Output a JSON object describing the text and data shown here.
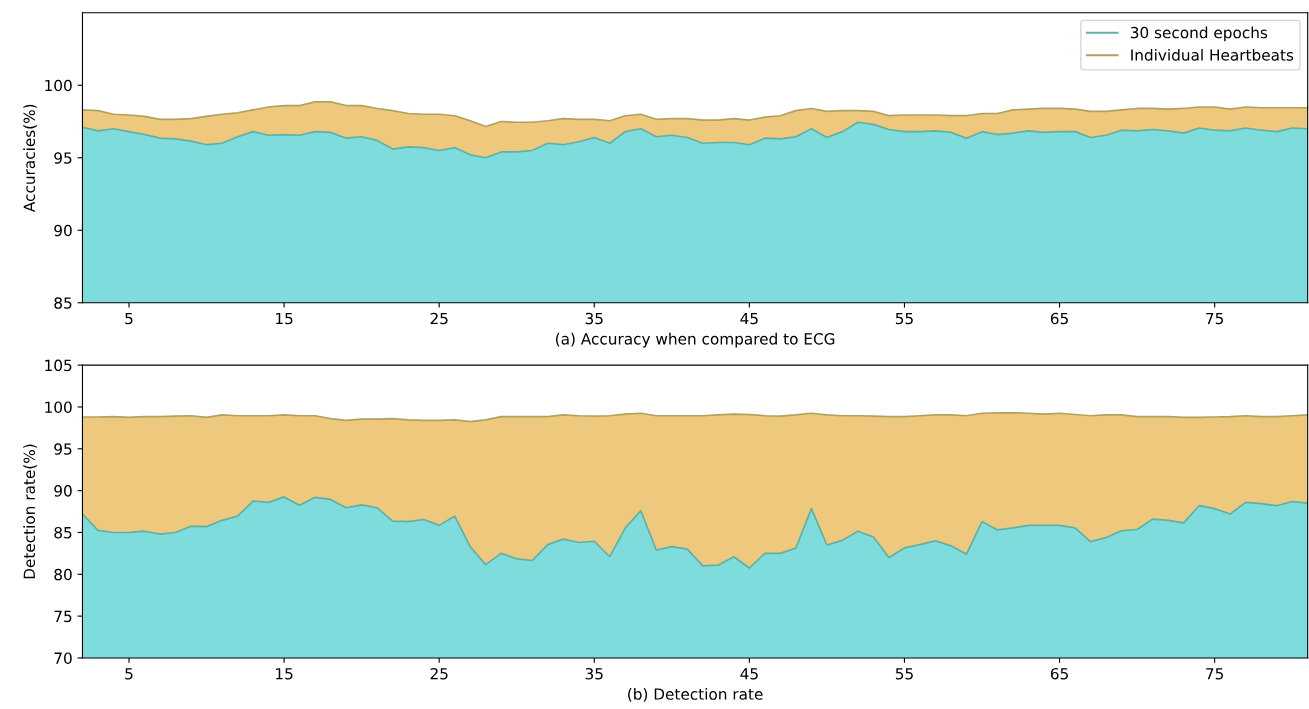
{
  "chart_data": [
    {
      "type": "area",
      "xlabel": "(a) Accuracy when compared to ECG",
      "ylabel": "Accuracies(%)",
      "x": [
        2,
        3,
        4,
        5,
        6,
        7,
        8,
        9,
        10,
        11,
        12,
        13,
        14,
        15,
        16,
        17,
        18,
        19,
        20,
        21,
        22,
        23,
        24,
        25,
        26,
        27,
        28,
        29,
        30,
        31,
        32,
        33,
        34,
        35,
        36,
        37,
        38,
        39,
        40,
        41,
        42,
        43,
        44,
        45,
        46,
        47,
        48,
        49,
        50,
        51,
        52,
        53,
        54,
        55,
        56,
        57,
        58,
        59,
        60,
        61,
        62,
        63,
        64,
        65,
        66,
        67,
        68,
        69,
        70,
        71,
        72,
        73,
        74,
        75,
        76,
        77,
        78,
        79,
        80,
        81
      ],
      "xlim": [
        2,
        81
      ],
      "xticks": [
        5,
        15,
        25,
        35,
        45,
        55,
        65,
        75
      ],
      "ylim": [
        85,
        105
      ],
      "yticks": [
        85,
        90,
        95,
        100
      ],
      "legend": "top right",
      "grid": false,
      "series": [
        {
          "name": "Individual Heartbeats",
          "color": "#eec97d",
          "values": [
            98.3,
            98.25,
            98.0,
            97.95,
            97.85,
            97.65,
            97.65,
            97.7,
            97.85,
            98.0,
            98.1,
            98.3,
            98.5,
            98.6,
            98.6,
            98.85,
            98.85,
            98.6,
            98.6,
            98.4,
            98.25,
            98.05,
            98.0,
            98.0,
            97.9,
            97.55,
            97.15,
            97.5,
            97.45,
            97.45,
            97.55,
            97.7,
            97.65,
            97.65,
            97.55,
            97.9,
            98.0,
            97.65,
            97.7,
            97.7,
            97.6,
            97.6,
            97.7,
            97.6,
            97.8,
            97.9,
            98.25,
            98.4,
            98.2,
            98.25,
            98.25,
            98.2,
            97.9,
            97.95,
            97.95,
            97.95,
            97.9,
            97.9,
            98.05,
            98.05,
            98.3,
            98.35,
            98.4,
            98.4,
            98.35,
            98.2,
            98.2,
            98.3,
            98.4,
            98.4,
            98.35,
            98.4,
            98.5,
            98.5,
            98.35,
            98.5,
            98.45,
            98.45,
            98.45,
            98.45
          ]
        },
        {
          "name": "30 second epochs",
          "color": "#7fdcdc",
          "values": [
            97.1,
            96.85,
            97.0,
            96.8,
            96.6,
            96.35,
            96.3,
            96.15,
            95.9,
            96.0,
            96.45,
            96.8,
            96.55,
            96.6,
            96.55,
            96.8,
            96.75,
            96.35,
            96.45,
            96.2,
            95.6,
            95.75,
            95.7,
            95.5,
            95.7,
            95.2,
            95.0,
            95.4,
            95.4,
            95.5,
            96.0,
            95.9,
            96.1,
            96.4,
            96.0,
            96.8,
            97.0,
            96.45,
            96.55,
            96.4,
            96.0,
            96.05,
            96.05,
            95.9,
            96.35,
            96.3,
            96.45,
            97.0,
            96.4,
            96.8,
            97.45,
            97.3,
            96.95,
            96.8,
            96.8,
            96.85,
            96.75,
            96.35,
            96.8,
            96.6,
            96.7,
            96.85,
            96.75,
            96.8,
            96.8,
            96.4,
            96.55,
            96.9,
            96.85,
            96.95,
            96.85,
            96.7,
            97.05,
            96.9,
            96.85,
            97.05,
            96.9,
            96.8,
            97.05,
            97.0
          ]
        }
      ]
    },
    {
      "type": "area",
      "xlabel": "(b) Detection rate",
      "ylabel": "Detection rate(%)",
      "x": [
        2,
        3,
        4,
        5,
        6,
        7,
        8,
        9,
        10,
        11,
        12,
        13,
        14,
        15,
        16,
        17,
        18,
        19,
        20,
        21,
        22,
        23,
        24,
        25,
        26,
        27,
        28,
        29,
        30,
        31,
        32,
        33,
        34,
        35,
        36,
        37,
        38,
        39,
        40,
        41,
        42,
        43,
        44,
        45,
        46,
        47,
        48,
        49,
        50,
        51,
        52,
        53,
        54,
        55,
        56,
        57,
        58,
        59,
        60,
        61,
        62,
        63,
        64,
        65,
        66,
        67,
        68,
        69,
        70,
        71,
        72,
        73,
        74,
        75,
        76,
        77,
        78,
        79,
        80,
        81
      ],
      "xlim": [
        2,
        81
      ],
      "xticks": [
        5,
        15,
        25,
        35,
        45,
        55,
        65,
        75
      ],
      "ylim": [
        70,
        105
      ],
      "yticks": [
        70,
        75,
        80,
        85,
        90,
        95,
        100,
        105
      ],
      "grid": false,
      "series": [
        {
          "color": "#eec97d",
          "values": [
            98.8,
            98.8,
            98.85,
            98.75,
            98.85,
            98.85,
            98.9,
            98.95,
            98.75,
            99.05,
            98.95,
            98.95,
            98.95,
            99.05,
            98.95,
            98.95,
            98.6,
            98.4,
            98.55,
            98.55,
            98.6,
            98.45,
            98.4,
            98.4,
            98.45,
            98.25,
            98.45,
            98.85,
            98.85,
            98.85,
            98.85,
            99.05,
            98.95,
            98.9,
            98.95,
            99.15,
            99.25,
            98.95,
            98.95,
            98.95,
            98.95,
            99.05,
            99.15,
            99.1,
            98.95,
            98.9,
            99.05,
            99.25,
            99.05,
            98.95,
            98.95,
            98.9,
            98.85,
            98.85,
            98.95,
            99.05,
            99.05,
            98.95,
            99.25,
            99.3,
            99.3,
            99.25,
            99.15,
            99.25,
            99.1,
            98.95,
            99.05,
            99.05,
            98.85,
            98.85,
            98.85,
            98.75,
            98.75,
            98.8,
            98.85,
            98.95,
            98.85,
            98.85,
            98.95,
            99.05
          ]
        },
        {
          "color": "#7fdcdc",
          "values": [
            87.2,
            85.25,
            85.0,
            85.0,
            85.15,
            84.8,
            85.0,
            85.75,
            85.7,
            86.45,
            86.95,
            88.75,
            88.6,
            89.25,
            88.25,
            89.2,
            88.95,
            87.95,
            88.3,
            87.95,
            86.35,
            86.3,
            86.55,
            85.85,
            86.95,
            83.3,
            81.15,
            82.5,
            81.85,
            81.65,
            83.55,
            84.2,
            83.8,
            83.95,
            82.1,
            85.55,
            87.6,
            82.9,
            83.3,
            83.0,
            81.0,
            81.1,
            82.1,
            80.75,
            82.5,
            82.5,
            83.15,
            87.85,
            83.5,
            84.05,
            85.15,
            84.45,
            82.0,
            83.15,
            83.55,
            84.0,
            83.4,
            82.4,
            86.3,
            85.3,
            85.55,
            85.85,
            85.85,
            85.85,
            85.55,
            83.9,
            84.4,
            85.2,
            85.35,
            86.6,
            86.45,
            86.15,
            88.2,
            87.85,
            87.2,
            88.6,
            88.45,
            88.2,
            88.7,
            88.5
          ]
        }
      ]
    }
  ]
}
